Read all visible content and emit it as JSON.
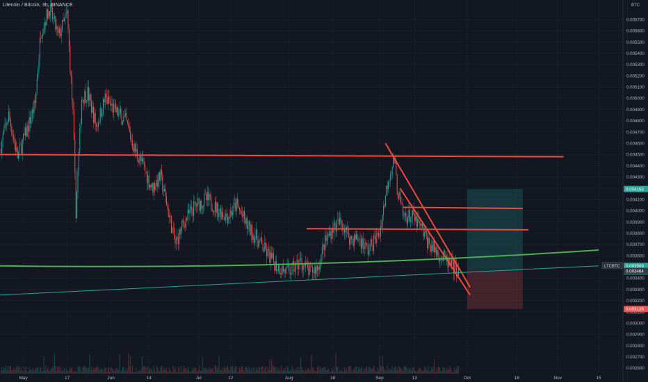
{
  "header": {
    "symbol_title": "Litecoin / Bitcoin, 3h, BINANCE",
    "price_unit": "BTC"
  },
  "colors": {
    "background": "#131722",
    "grid": "#1e222d",
    "axis_text": "#b2b5be",
    "candle_up": "#26a69a",
    "candle_down": "#ef5350",
    "trendline_red": "#f24a3d",
    "curve_green": "#4caf50",
    "line_teal": "#26a69a",
    "target_zone": "#26a69a",
    "stop_zone": "#ef5350"
  },
  "chart_data": {
    "type": "candlestick",
    "title": "Litecoin / Bitcoin, 3h, BINANCE",
    "ylabel": "BTC",
    "ylim": [
      0.0026,
      0.0058
    ],
    "y_ticks": [
      "0.005700",
      "0.005600",
      "0.005500",
      "0.005400",
      "0.005300",
      "0.005200",
      "0.005100",
      "0.005000",
      "0.004900",
      "0.004800",
      "0.004700",
      "0.004600",
      "0.004500",
      "0.004400",
      "0.004300",
      "0.004200",
      "0.004100",
      "0.004000",
      "0.003900",
      "0.003800",
      "0.003700",
      "0.003600",
      "0.003500",
      "0.003400",
      "0.003300",
      "0.003200",
      "0.003100",
      "0.003000",
      "0.002900",
      "0.002800",
      "0.002700",
      "0.002600"
    ],
    "x_ticks": [
      "May",
      "17",
      "Jun",
      "14",
      "Jul",
      "12",
      "Aug",
      "16",
      "Sep",
      "13",
      "Oct",
      "18",
      "Nov",
      "15"
    ],
    "close_path": [
      {
        "t": "Apr 24",
        "p": 0.00455
      },
      {
        "t": "Apr 27",
        "p": 0.00485
      },
      {
        "t": "Apr 30",
        "p": 0.00448
      },
      {
        "t": "May 3",
        "p": 0.0047
      },
      {
        "t": "May 6",
        "p": 0.00495
      },
      {
        "t": "May 8",
        "p": 0.0056
      },
      {
        "t": "May 11",
        "p": 0.0058
      },
      {
        "t": "May 14",
        "p": 0.00555
      },
      {
        "t": "May 17",
        "p": 0.00575
      },
      {
        "t": "May 19",
        "p": 0.00485
      },
      {
        "t": "May 20",
        "p": 0.004
      },
      {
        "t": "May 22",
        "p": 0.005
      },
      {
        "t": "May 24",
        "p": 0.00505
      },
      {
        "t": "May 27",
        "p": 0.00475
      },
      {
        "t": "May 30",
        "p": 0.005
      },
      {
        "t": "Jun 2",
        "p": 0.0049
      },
      {
        "t": "Jun 6",
        "p": 0.0048
      },
      {
        "t": "Jun 9",
        "p": 0.00455
      },
      {
        "t": "Jun 12",
        "p": 0.0044
      },
      {
        "t": "Jun 15",
        "p": 0.0042
      },
      {
        "t": "Jun 18",
        "p": 0.0043
      },
      {
        "t": "Jun 21",
        "p": 0.00395
      },
      {
        "t": "Jun 23",
        "p": 0.0037
      },
      {
        "t": "Jun 26",
        "p": 0.0039
      },
      {
        "t": "Jun 30",
        "p": 0.00405
      },
      {
        "t": "Jul 4",
        "p": 0.0041
      },
      {
        "t": "Jul 8",
        "p": 0.004
      },
      {
        "t": "Jul 11",
        "p": 0.00395
      },
      {
        "t": "Jul 14",
        "p": 0.00405
      },
      {
        "t": "Jul 18",
        "p": 0.00385
      },
      {
        "t": "Jul 21",
        "p": 0.00375
      },
      {
        "t": "Jul 25",
        "p": 0.0036
      },
      {
        "t": "Jul 28",
        "p": 0.0035
      },
      {
        "t": "Aug 1",
        "p": 0.00345
      },
      {
        "t": "Aug 5",
        "p": 0.00355
      },
      {
        "t": "Aug 8",
        "p": 0.00345
      },
      {
        "t": "Aug 11",
        "p": 0.0035
      },
      {
        "t": "Aug 13",
        "p": 0.0037
      },
      {
        "t": "Aug 16",
        "p": 0.00385
      },
      {
        "t": "Aug 19",
        "p": 0.0039
      },
      {
        "t": "Aug 22",
        "p": 0.00375
      },
      {
        "t": "Aug 25",
        "p": 0.00375
      },
      {
        "t": "Aug 28",
        "p": 0.00365
      },
      {
        "t": "Sep 1",
        "p": 0.0038
      },
      {
        "t": "Sep 4",
        "p": 0.0043
      },
      {
        "t": "Sep 6",
        "p": 0.00445
      },
      {
        "t": "Sep 7",
        "p": 0.0042
      },
      {
        "t": "Sep 9",
        "p": 0.00395
      },
      {
        "t": "Sep 12",
        "p": 0.00395
      },
      {
        "t": "Sep 15",
        "p": 0.00385
      },
      {
        "t": "Sep 18",
        "p": 0.0037
      },
      {
        "t": "Sep 22",
        "p": 0.0036
      },
      {
        "t": "Sep 25",
        "p": 0.00352
      },
      {
        "t": "Sep 28",
        "p": 0.003464
      }
    ],
    "drawings": [
      {
        "name": "horizontal-resistance-line",
        "x0": "Apr 24",
        "x1": "Nov 3",
        "y0": 0.0045,
        "y1": 0.00448
      },
      {
        "name": "descending-trendline-1",
        "x0": "Sep 3",
        "x1": "Oct 2",
        "y0": 0.0046,
        "y1": 0.00332
      },
      {
        "name": "descending-trendline-2",
        "x0": "Sep 8",
        "x1": "Oct 2",
        "y0": 0.0042,
        "y1": 0.00325
      },
      {
        "name": "horizontal-level-1",
        "x0": "Sep 9",
        "x1": "Oct 20",
        "y0": 0.00403,
        "y1": 0.00402
      },
      {
        "name": "horizontal-level-2",
        "x0": "Aug 7",
        "x1": "Oct 22",
        "y0": 0.00384,
        "y1": 0.00383
      },
      {
        "name": "green-curve",
        "x0": "Apr 24",
        "x1": "Nov 15",
        "y0": 0.00351,
        "y1": 0.00365
      },
      {
        "name": "teal-support-line",
        "x0": "Apr 24",
        "x1": "Nov 15",
        "y0": 0.00325,
        "y1": 0.00351
      }
    ],
    "position": {
      "x0": "Oct 1",
      "x1": "Oct 20",
      "target": 0.004193,
      "entry": 0.003464,
      "stop": 0.003126
    },
    "price_labels": [
      {
        "label": "0.004193",
        "value": 0.004193,
        "color": "#26a69a"
      },
      {
        "label": "0.003509",
        "value": 0.003509,
        "color": "#26a69a",
        "sub": "01:02:04"
      },
      {
        "label": "0.003464",
        "value": 0.003464,
        "color": "#363a45"
      },
      {
        "label": "0.003126",
        "value": 0.003126,
        "color": "#ef5350"
      }
    ],
    "symbol_badge": "LTCBTC"
  }
}
